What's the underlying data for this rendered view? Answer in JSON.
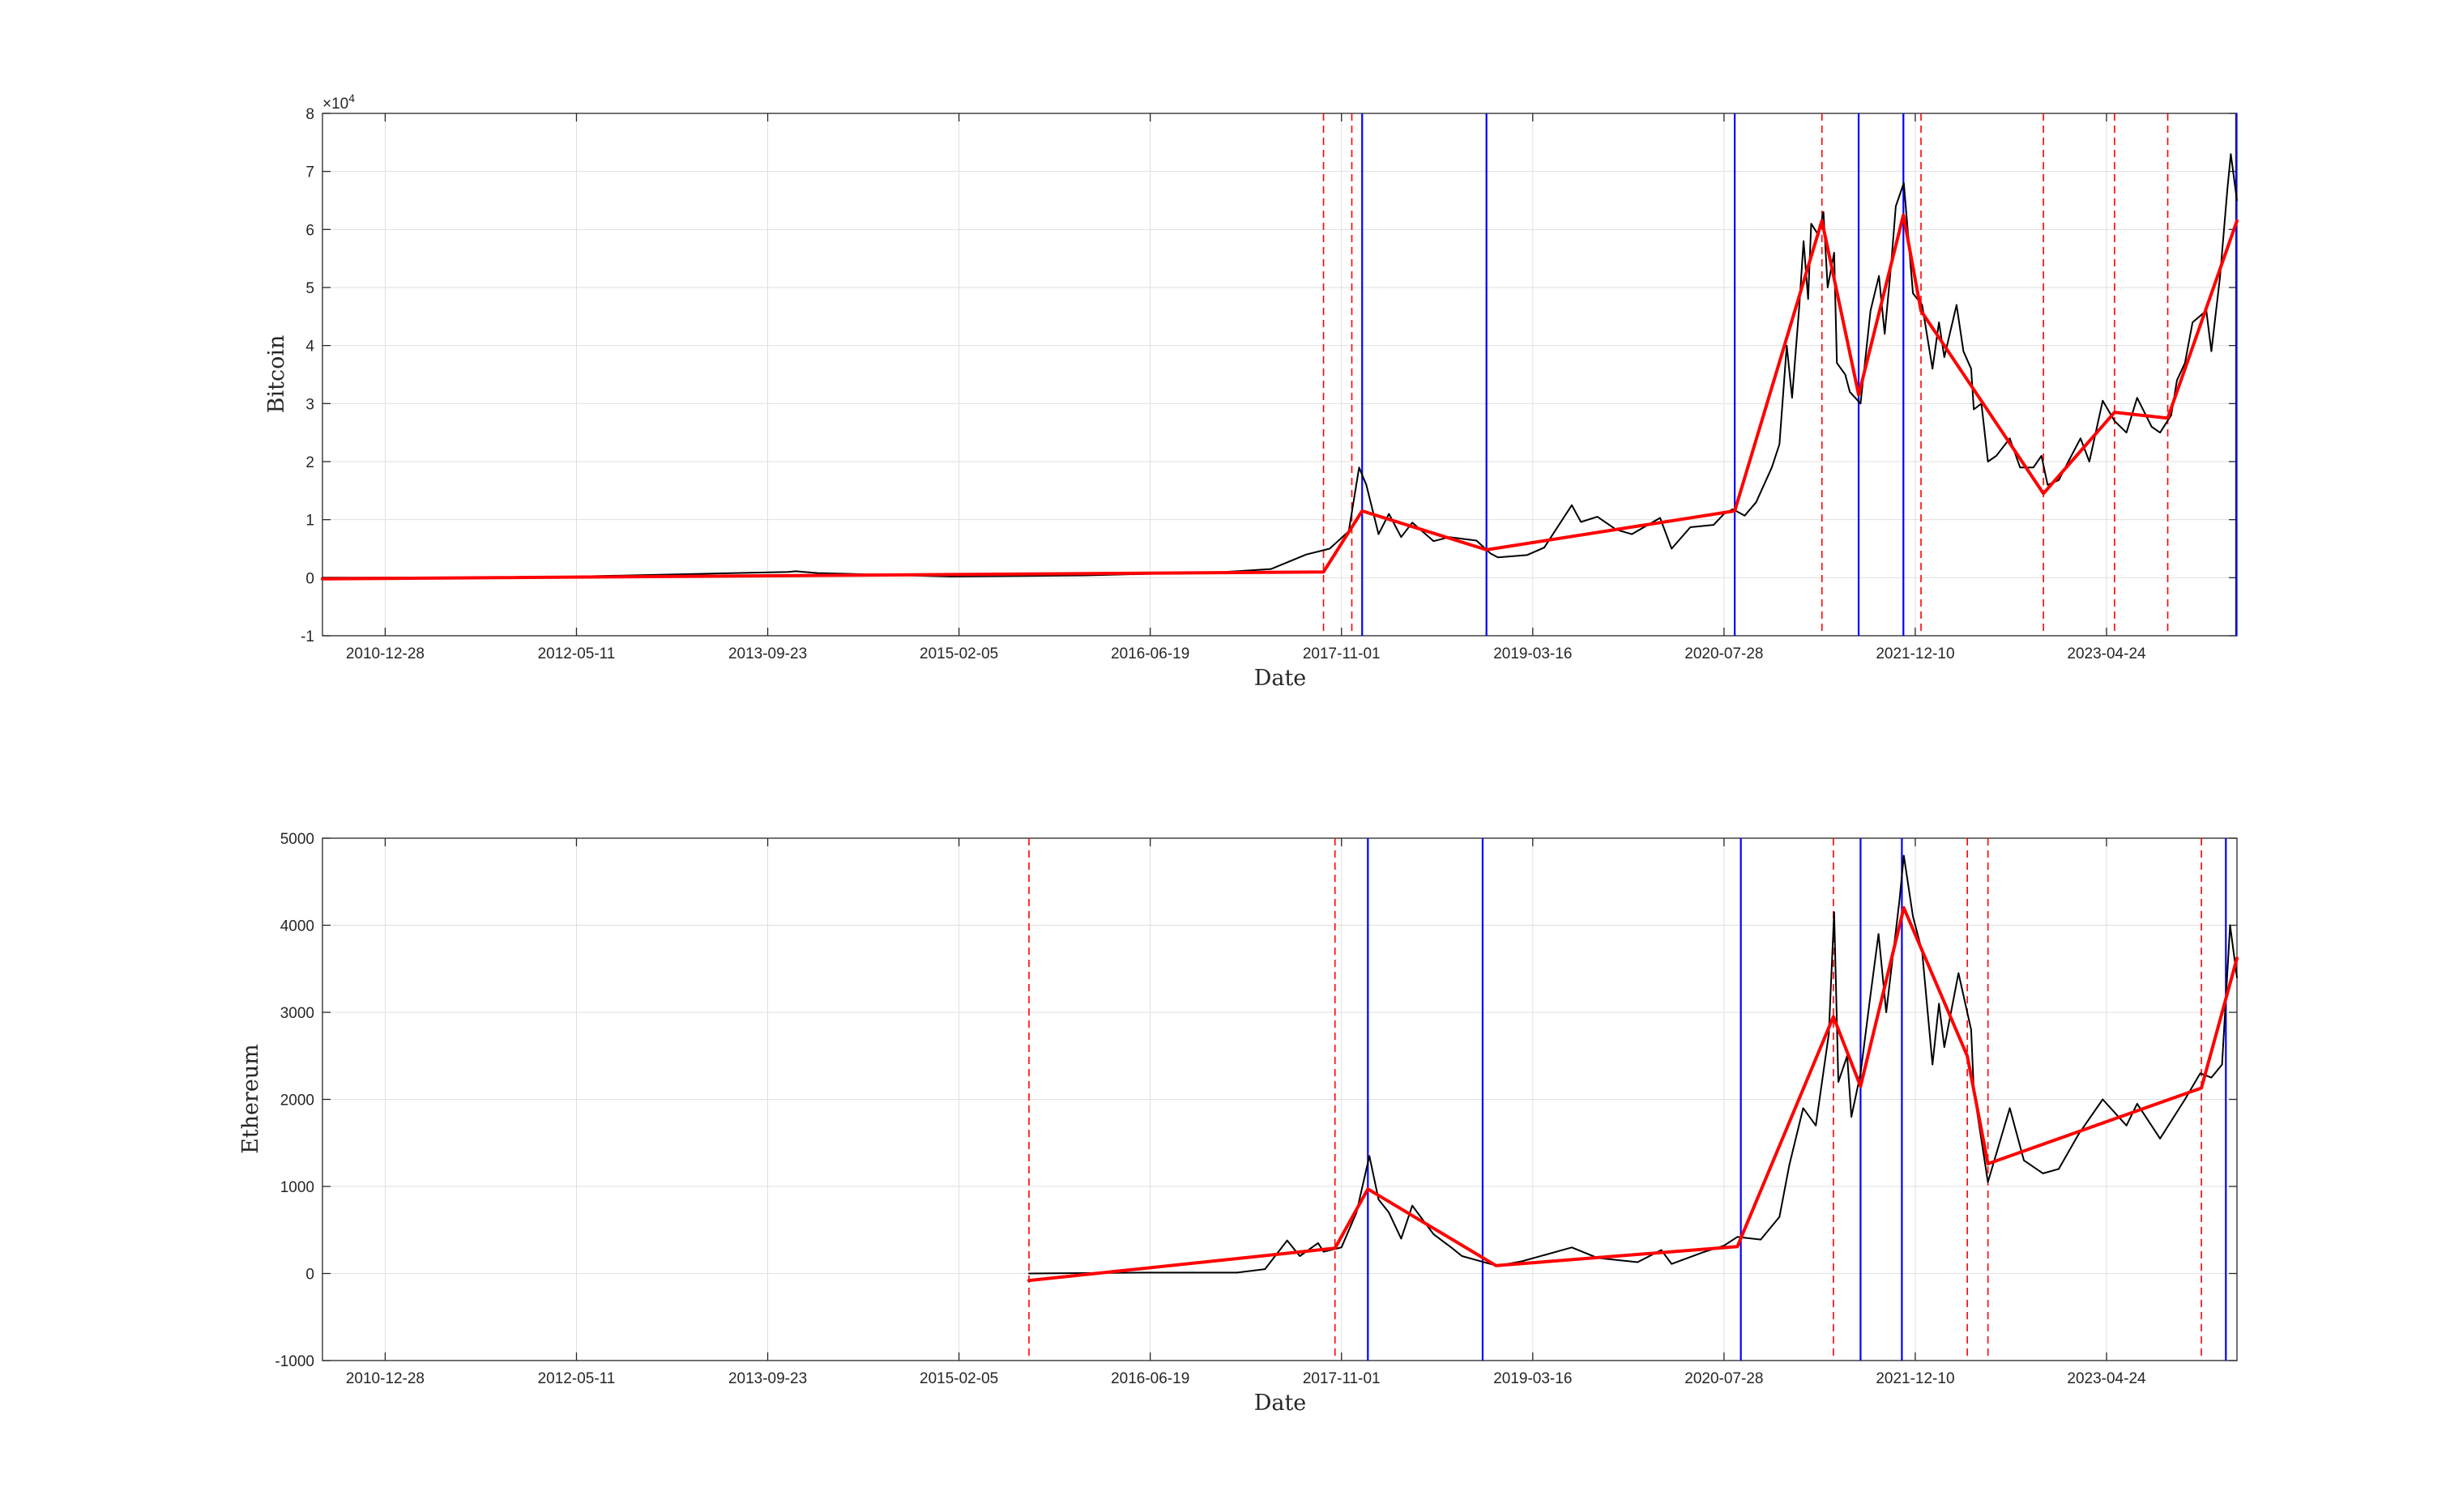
{
  "chart_data": [
    {
      "type": "line",
      "xlabel": "Date",
      "ylabel": "Bitcoin",
      "y_exponent_label": "×10",
      "y_exponent_power": "4",
      "xlim": [
        "2010-07-17",
        "2024-03-30"
      ],
      "ylim": [
        -1,
        8
      ],
      "y_scale_note": "values in units of 10^4 USD",
      "xticks": [
        "2010-12-28",
        "2012-05-11",
        "2013-09-23",
        "2015-02-05",
        "2016-06-19",
        "2017-11-01",
        "2019-03-16",
        "2020-07-28",
        "2021-12-10",
        "2023-04-24"
      ],
      "yticks": [
        "-1",
        "0",
        "1",
        "2",
        "3",
        "4",
        "5",
        "6",
        "7",
        "8"
      ],
      "grid": true,
      "series": [
        {
          "color": "#000000",
          "x": [
            "2010-07-17",
            "2012-01-01",
            "2013-11-15",
            "2013-12-05",
            "2014-02-01",
            "2015-01-15",
            "2016-01-01",
            "2017-01-01",
            "2017-05-01",
            "2017-08-01",
            "2017-10-01",
            "2017-11-20",
            "2017-12-17",
            "2018-01-05",
            "2018-02-06",
            "2018-03-05",
            "2018-04-06",
            "2018-05-05",
            "2018-06-30",
            "2018-08-10",
            "2018-10-20",
            "2018-11-25",
            "2018-12-15",
            "2019-03-01",
            "2019-04-15",
            "2019-06-26",
            "2019-07-20",
            "2019-09-01",
            "2019-10-20",
            "2019-11-30",
            "2020-02-12",
            "2020-03-13",
            "2020-05-01",
            "2020-07-01",
            "2020-07-28",
            "2020-08-20",
            "2020-09-20",
            "2020-10-20",
            "2020-11-30",
            "2020-12-20",
            "2021-01-08",
            "2021-01-22",
            "2021-02-10",
            "2021-02-21",
            "2021-03-05",
            "2021-03-13",
            "2021-04-01",
            "2021-04-14",
            "2021-04-25",
            "2021-05-12",
            "2021-05-19",
            "2021-06-10",
            "2021-06-22",
            "2021-07-20",
            "2021-08-15",
            "2021-09-06",
            "2021-09-21",
            "2021-10-08",
            "2021-10-20",
            "2021-11-10",
            "2021-11-25",
            "2021-12-04",
            "2021-12-28",
            "2022-01-24",
            "2022-02-10",
            "2022-02-24",
            "2022-03-28",
            "2022-04-15",
            "2022-05-05",
            "2022-05-12",
            "2022-06-01",
            "2022-06-18",
            "2022-07-10",
            "2022-08-14",
            "2022-09-10",
            "2022-10-15",
            "2022-11-05",
            "2022-11-21",
            "2022-12-20",
            "2023-01-14",
            "2023-02-15",
            "2023-03-10",
            "2023-04-14",
            "2023-05-15",
            "2023-06-15",
            "2023-07-13",
            "2023-08-20",
            "2023-09-11",
            "2023-10-10",
            "2023-10-25",
            "2023-11-15",
            "2023-12-05",
            "2024-01-10",
            "2024-01-23",
            "2024-02-15",
            "2024-03-05",
            "2024-03-14",
            "2024-03-30"
          ],
          "y": [
            0,
            0.0005,
            0.1,
            0.11,
            0.08,
            0.02,
            0.04,
            0.1,
            0.15,
            0.4,
            0.5,
            0.8,
            1.9,
            1.6,
            0.75,
            1.1,
            0.7,
            0.95,
            0.63,
            0.7,
            0.64,
            0.42,
            0.35,
            0.39,
            0.52,
            1.25,
            0.96,
            1.05,
            0.83,
            0.75,
            1.03,
            0.5,
            0.87,
            0.91,
            1.1,
            1.18,
            1.07,
            1.3,
            1.9,
            2.3,
            4.0,
            3.1,
            4.7,
            5.8,
            4.8,
            6.1,
            5.9,
            6.3,
            5.0,
            5.6,
            3.7,
            3.5,
            3.2,
            3.0,
            4.6,
            5.2,
            4.2,
            5.4,
            6.4,
            6.8,
            5.6,
            4.9,
            4.7,
            3.6,
            4.4,
            3.8,
            4.7,
            3.9,
            3.6,
            2.9,
            3.0,
            2.0,
            2.1,
            2.4,
            1.9,
            1.9,
            2.1,
            1.6,
            1.68,
            2.0,
            2.4,
            2.0,
            3.05,
            2.7,
            2.5,
            3.1,
            2.6,
            2.5,
            2.8,
            3.4,
            3.7,
            4.4,
            4.6,
            3.9,
            5.2,
            6.7,
            7.3,
            6.5
          ]
        },
        {
          "color": "#ff0000",
          "x": [
            "2010-07-17",
            "2017-09-15",
            "2017-12-25",
            "2018-11-15",
            "2020-08-25",
            "2021-04-10",
            "2021-07-15",
            "2021-11-09",
            "2021-12-25",
            "2022-11-10",
            "2023-05-15",
            "2023-10-01",
            "2024-03-30"
          ],
          "y": [
            -0.02,
            0.1,
            1.15,
            0.48,
            1.15,
            6.15,
            3.15,
            6.25,
            4.6,
            1.45,
            2.85,
            2.75,
            6.15
          ]
        }
      ],
      "vlines": [
        {
          "x": "2017-09-15",
          "color": "#ff0000",
          "style": "dashed"
        },
        {
          "x": "2017-11-28",
          "color": "#ff0000",
          "style": "dashed"
        },
        {
          "x": "2017-12-25",
          "color": "#0000ff",
          "style": "solid"
        },
        {
          "x": "2018-11-15",
          "color": "#0000ff",
          "style": "solid"
        },
        {
          "x": "2020-08-25",
          "color": "#0000ff",
          "style": "solid"
        },
        {
          "x": "2021-04-10",
          "color": "#ff0000",
          "style": "dashed"
        },
        {
          "x": "2021-07-15",
          "color": "#0000ff",
          "style": "solid"
        },
        {
          "x": "2021-11-09",
          "color": "#0000ff",
          "style": "solid"
        },
        {
          "x": "2021-12-25",
          "color": "#ff0000",
          "style": "dashed"
        },
        {
          "x": "2022-11-10",
          "color": "#ff0000",
          "style": "dashed"
        },
        {
          "x": "2023-05-15",
          "color": "#ff0000",
          "style": "dashed"
        },
        {
          "x": "2023-10-01",
          "color": "#ff0000",
          "style": "dashed"
        },
        {
          "x": "2024-03-30",
          "color": "#0000ff",
          "style": "solid"
        }
      ]
    },
    {
      "type": "line",
      "xlabel": "Date",
      "ylabel": "Ethereum",
      "xlim": [
        "2010-07-17",
        "2024-03-30"
      ],
      "ylim": [
        -1000,
        5000
      ],
      "xticks": [
        "2010-12-28",
        "2012-05-11",
        "2013-09-23",
        "2015-02-05",
        "2016-06-19",
        "2017-11-01",
        "2019-03-16",
        "2020-07-28",
        "2021-12-10",
        "2023-04-24"
      ],
      "yticks": [
        "-1000",
        "0",
        "1000",
        "2000",
        "3000",
        "4000",
        "5000"
      ],
      "grid": true,
      "series": [
        {
          "color": "#000000",
          "x": [
            "2015-08-07",
            "2016-06-01",
            "2017-02-01",
            "2017-04-15",
            "2017-06-12",
            "2017-07-15",
            "2017-09-01",
            "2017-09-15",
            "2017-11-01",
            "2017-12-10",
            "2018-01-13",
            "2018-02-06",
            "2018-03-05",
            "2018-04-06",
            "2018-05-05",
            "2018-06-30",
            "2018-08-15",
            "2018-09-12",
            "2018-11-25",
            "2018-12-15",
            "2019-02-15",
            "2019-06-26",
            "2019-09-01",
            "2019-12-15",
            "2020-02-15",
            "2020-03-13",
            "2020-06-01",
            "2020-07-28",
            "2020-09-01",
            "2020-11-01",
            "2020-12-20",
            "2021-01-15",
            "2021-02-20",
            "2021-03-25",
            "2021-04-28",
            "2021-05-12",
            "2021-05-23",
            "2021-06-15",
            "2021-06-26",
            "2021-07-20",
            "2021-08-15",
            "2021-09-05",
            "2021-09-25",
            "2021-10-30",
            "2021-11-10",
            "2021-12-04",
            "2021-12-28",
            "2022-01-24",
            "2022-02-10",
            "2022-02-24",
            "2022-04-02",
            "2022-05-05",
            "2022-05-12",
            "2022-06-18",
            "2022-08-14",
            "2022-09-20",
            "2022-11-09",
            "2022-12-20",
            "2023-02-10",
            "2023-04-14",
            "2023-06-15",
            "2023-07-13",
            "2023-09-11",
            "2023-11-15",
            "2023-12-25",
            "2024-01-23",
            "2024-02-20",
            "2024-03-12",
            "2024-03-30"
          ],
          "y": [
            0,
            10,
            10,
            50,
            380,
            200,
            350,
            250,
            300,
            700,
            1350,
            850,
            700,
            400,
            780,
            450,
            300,
            200,
            110,
            90,
            140,
            300,
            180,
            130,
            270,
            110,
            240,
            320,
            420,
            390,
            650,
            1250,
            1900,
            1700,
            2750,
            4150,
            2200,
            2500,
            1800,
            2300,
            3200,
            3900,
            3000,
            4300,
            4800,
            4100,
            3700,
            2400,
            3100,
            2600,
            3450,
            2800,
            2100,
            1050,
            1900,
            1300,
            1150,
            1200,
            1600,
            2000,
            1700,
            1950,
            1550,
            2000,
            2300,
            2250,
            2400,
            4000,
            3400
          ]
        },
        {
          "color": "#ff0000",
          "x": [
            "2015-08-07",
            "2017-10-15",
            "2018-01-09",
            "2018-12-10",
            "2020-09-01",
            "2021-05-10",
            "2021-07-20",
            "2021-11-10",
            "2022-04-25",
            "2022-06-18",
            "2023-12-28",
            "2024-03-30"
          ],
          "y": [
            -80,
            290,
            970,
            90,
            310,
            2950,
            2150,
            4200,
            2500,
            1260,
            2130,
            3620
          ]
        }
      ],
      "vlines": [
        {
          "x": "2015-08-07",
          "color": "#ff0000",
          "style": "dashed"
        },
        {
          "x": "2017-10-15",
          "color": "#ff0000",
          "style": "dashed"
        },
        {
          "x": "2018-01-09",
          "color": "#0000ff",
          "style": "solid"
        },
        {
          "x": "2018-11-05",
          "color": "#0000ff",
          "style": "solid"
        },
        {
          "x": "2020-09-10",
          "color": "#0000ff",
          "style": "solid"
        },
        {
          "x": "2021-05-10",
          "color": "#ff0000",
          "style": "dashed"
        },
        {
          "x": "2021-07-20",
          "color": "#0000ff",
          "style": "solid"
        },
        {
          "x": "2021-11-05",
          "color": "#0000ff",
          "style": "solid"
        },
        {
          "x": "2022-04-25",
          "color": "#ff0000",
          "style": "dashed"
        },
        {
          "x": "2022-06-18",
          "color": "#ff0000",
          "style": "dashed"
        },
        {
          "x": "2023-12-28",
          "color": "#ff0000",
          "style": "dashed"
        },
        {
          "x": "2024-03-01",
          "color": "#0000ff",
          "style": "solid"
        }
      ]
    }
  ]
}
